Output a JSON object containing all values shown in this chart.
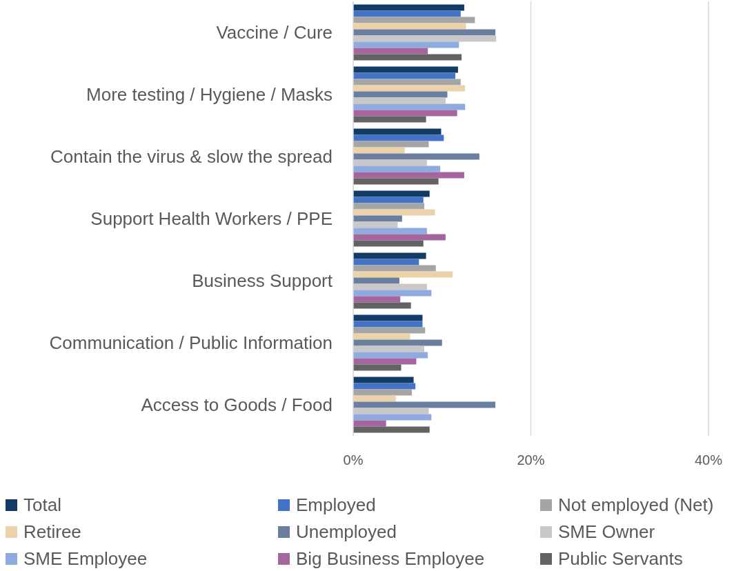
{
  "chart_data": {
    "type": "bar",
    "orientation": "horizontal",
    "categories": [
      "Vaccine / Cure",
      "More testing / Hygiene / Masks",
      "Contain the virus & slow the spread",
      "Support Health Workers / PPE",
      "Business Support",
      "Communication / Public Information",
      "Access to Goods / Food"
    ],
    "series": [
      {
        "name": "Total",
        "color": "#123b66",
        "values": [
          12.5,
          11.8,
          9.9,
          8.6,
          8.2,
          7.8,
          6.8
        ]
      },
      {
        "name": "Employed",
        "color": "#4472c4",
        "values": [
          12.1,
          11.5,
          10.2,
          7.9,
          7.4,
          7.8,
          7.0
        ]
      },
      {
        "name": "Not employed (Net)",
        "color": "#a5a5a5",
        "values": [
          13.7,
          12.1,
          8.5,
          8.0,
          9.3,
          8.1,
          6.6
        ]
      },
      {
        "name": "Retiree",
        "color": "#ebd2ab",
        "values": [
          12.7,
          12.6,
          5.8,
          9.2,
          11.2,
          6.4,
          4.8
        ]
      },
      {
        "name": "Unemployed",
        "color": "#6a7ea0",
        "values": [
          16.0,
          10.6,
          14.2,
          5.5,
          5.2,
          10.0,
          16.0
        ]
      },
      {
        "name": "SME Owner",
        "color": "#c9c7c8",
        "values": [
          16.1,
          10.4,
          8.3,
          5.0,
          8.3,
          8.0,
          8.5
        ]
      },
      {
        "name": "SME Employee",
        "color": "#8eaadf",
        "values": [
          11.9,
          12.6,
          9.8,
          8.3,
          8.8,
          8.4,
          8.8
        ]
      },
      {
        "name": "Big Business Employee",
        "color": "#a5669f",
        "values": [
          8.4,
          11.7,
          12.5,
          10.4,
          5.3,
          7.1,
          3.7
        ]
      },
      {
        "name": "Public Servants",
        "color": "#636363",
        "values": [
          12.2,
          8.2,
          9.6,
          7.9,
          6.5,
          5.4,
          8.6
        ]
      }
    ],
    "xlim": [
      0,
      40
    ],
    "xticks": [
      {
        "value": 0,
        "label": "0%"
      },
      {
        "value": 20,
        "label": "20%"
      },
      {
        "value": 40,
        "label": "40%"
      }
    ],
    "grid": "x",
    "legend": "bottom"
  }
}
